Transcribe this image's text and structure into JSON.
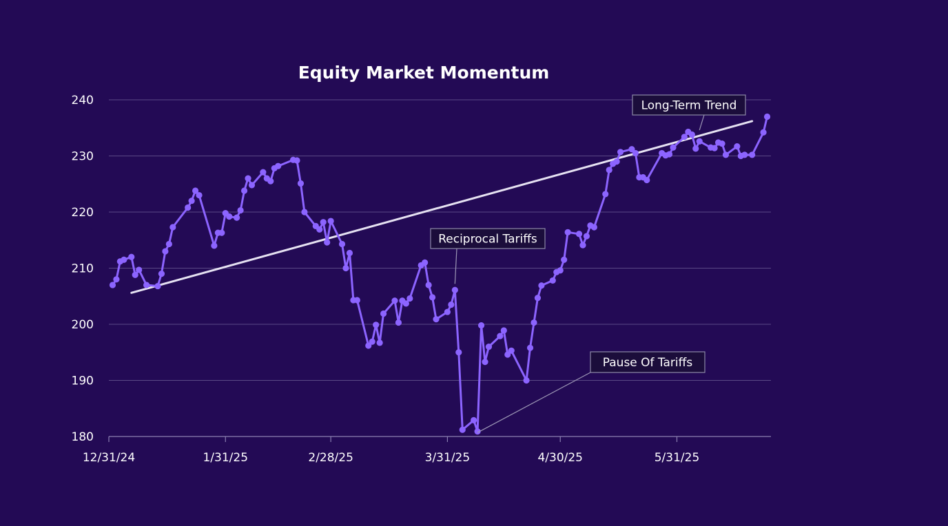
{
  "chart_data": {
    "type": "line",
    "title": "Equity Market Momentum",
    "xlabel": "",
    "ylabel": "",
    "ylim": [
      180,
      240
    ],
    "yticks": [
      180,
      190,
      200,
      210,
      220,
      230,
      240
    ],
    "xticks": [
      {
        "label": "12/31/24",
        "date": "2024-12-31"
      },
      {
        "label": "1/31/25",
        "date": "2025-01-31"
      },
      {
        "label": "2/28/25",
        "date": "2025-02-28"
      },
      {
        "label": "3/31/25",
        "date": "2025-03-31"
      },
      {
        "label": "4/30/25",
        "date": "2025-04-30"
      },
      {
        "label": "5/31/25",
        "date": "2025-05-31"
      }
    ],
    "xlim": [
      "2024-12-31",
      "2025-06-25"
    ],
    "grid": true,
    "colors": {
      "series": "#8c64ff",
      "trend": "#e6e2f2",
      "background": "#230a55"
    },
    "series": [
      {
        "markers": true,
        "points": [
          [
            "2025-01-01",
            207.0
          ],
          [
            "2025-01-02",
            208.0
          ],
          [
            "2025-01-03",
            211.2
          ],
          [
            "2025-01-04",
            211.5
          ],
          [
            "2025-01-06",
            212.0
          ],
          [
            "2025-01-07",
            208.8
          ],
          [
            "2025-01-08",
            209.7
          ],
          [
            "2025-01-10",
            207.0
          ],
          [
            "2025-01-13",
            206.8
          ],
          [
            "2025-01-14",
            209.0
          ],
          [
            "2025-01-15",
            213.0
          ],
          [
            "2025-01-16",
            214.3
          ],
          [
            "2025-01-17",
            217.3
          ],
          [
            "2025-01-21",
            220.8
          ],
          [
            "2025-01-22",
            222.0
          ],
          [
            "2025-01-23",
            223.8
          ],
          [
            "2025-01-24",
            223.0
          ],
          [
            "2025-01-28",
            214.0
          ],
          [
            "2025-01-29",
            216.3
          ],
          [
            "2025-01-30",
            216.3
          ],
          [
            "2025-01-31",
            219.8
          ],
          [
            "2025-02-01",
            219.2
          ],
          [
            "2025-02-03",
            219.0
          ],
          [
            "2025-02-04",
            220.3
          ],
          [
            "2025-02-05",
            223.8
          ],
          [
            "2025-02-06",
            226.0
          ],
          [
            "2025-02-07",
            224.8
          ],
          [
            "2025-02-10",
            227.1
          ],
          [
            "2025-02-11",
            226.0
          ],
          [
            "2025-02-12",
            225.5
          ],
          [
            "2025-02-13",
            227.8
          ],
          [
            "2025-02-14",
            228.2
          ],
          [
            "2025-02-18",
            229.3
          ],
          [
            "2025-02-19",
            229.2
          ],
          [
            "2025-02-20",
            225.1
          ],
          [
            "2025-02-21",
            220.0
          ],
          [
            "2025-02-24",
            217.5
          ],
          [
            "2025-02-25",
            216.9
          ],
          [
            "2025-02-26",
            218.2
          ],
          [
            "2025-02-27",
            214.6
          ],
          [
            "2025-02-28",
            218.4
          ],
          [
            "2025-03-03",
            214.3
          ],
          [
            "2025-03-04",
            210.0
          ],
          [
            "2025-03-05",
            212.7
          ],
          [
            "2025-03-06",
            204.3
          ],
          [
            "2025-03-07",
            204.3
          ],
          [
            "2025-03-10",
            196.2
          ],
          [
            "2025-03-11",
            196.9
          ],
          [
            "2025-03-12",
            199.9
          ],
          [
            "2025-03-13",
            196.7
          ],
          [
            "2025-03-14",
            201.9
          ],
          [
            "2025-03-17",
            204.2
          ],
          [
            "2025-03-18",
            200.3
          ],
          [
            "2025-03-19",
            204.2
          ],
          [
            "2025-03-20",
            203.7
          ],
          [
            "2025-03-21",
            204.6
          ],
          [
            "2025-03-24",
            210.5
          ],
          [
            "2025-03-25",
            211.0
          ],
          [
            "2025-03-26",
            207.0
          ],
          [
            "2025-03-27",
            204.8
          ],
          [
            "2025-03-28",
            200.9
          ],
          [
            "2025-03-31",
            202.2
          ],
          [
            "2025-04-01",
            203.5
          ],
          [
            "2025-04-02",
            206.1
          ],
          [
            "2025-04-03",
            195.0
          ],
          [
            "2025-04-04",
            181.2
          ],
          [
            "2025-04-07",
            182.9
          ],
          [
            "2025-04-08",
            180.9
          ],
          [
            "2025-04-09",
            199.8
          ],
          [
            "2025-04-10",
            193.3
          ],
          [
            "2025-04-11",
            196.0
          ],
          [
            "2025-04-14",
            197.9
          ],
          [
            "2025-04-15",
            198.9
          ],
          [
            "2025-04-16",
            194.6
          ],
          [
            "2025-04-17",
            195.3
          ],
          [
            "2025-04-21",
            190.0
          ],
          [
            "2025-04-22",
            195.8
          ],
          [
            "2025-04-23",
            200.3
          ],
          [
            "2025-04-24",
            204.7
          ],
          [
            "2025-04-25",
            206.9
          ],
          [
            "2025-04-28",
            207.8
          ],
          [
            "2025-04-29",
            209.3
          ],
          [
            "2025-04-30",
            209.6
          ],
          [
            "2025-05-01",
            211.5
          ],
          [
            "2025-05-02",
            216.4
          ],
          [
            "2025-05-05",
            216.1
          ],
          [
            "2025-05-06",
            214.1
          ],
          [
            "2025-05-07",
            215.7
          ],
          [
            "2025-05-08",
            217.6
          ],
          [
            "2025-05-09",
            217.3
          ],
          [
            "2025-05-12",
            223.2
          ],
          [
            "2025-05-13",
            227.5
          ],
          [
            "2025-05-14",
            228.6
          ],
          [
            "2025-05-15",
            229.0
          ],
          [
            "2025-05-16",
            230.7
          ],
          [
            "2025-05-19",
            231.2
          ],
          [
            "2025-05-20",
            230.5
          ],
          [
            "2025-05-21",
            226.2
          ],
          [
            "2025-05-22",
            226.2
          ],
          [
            "2025-05-23",
            225.7
          ],
          [
            "2025-05-27",
            230.5
          ],
          [
            "2025-05-28",
            230.1
          ],
          [
            "2025-05-29",
            230.3
          ],
          [
            "2025-05-30",
            231.5
          ],
          [
            "2025-06-02",
            233.4
          ],
          [
            "2025-06-03",
            234.3
          ],
          [
            "2025-06-04",
            233.8
          ],
          [
            "2025-06-05",
            231.3
          ],
          [
            "2025-06-06",
            232.6
          ],
          [
            "2025-06-09",
            231.5
          ],
          [
            "2025-06-10",
            231.4
          ],
          [
            "2025-06-11",
            232.4
          ],
          [
            "2025-06-12",
            232.2
          ],
          [
            "2025-06-13",
            230.2
          ],
          [
            "2025-06-16",
            231.7
          ],
          [
            "2025-06-17",
            230.0
          ],
          [
            "2025-06-18",
            230.2
          ],
          [
            "2025-06-20",
            230.2
          ],
          [
            "2025-06-23",
            234.2
          ],
          [
            "2025-06-24",
            237.0
          ]
        ]
      }
    ],
    "trend_line": {
      "start": [
        "2025-01-06",
        205.6
      ],
      "end": [
        "2025-06-20",
        236.2
      ]
    },
    "annotations": [
      {
        "text": "Long-Term Trend",
        "target": [
          "2025-06-06",
          234.6
        ]
      },
      {
        "text": "Reciprocal Tariffs",
        "target": [
          "2025-04-02",
          207.2
        ]
      },
      {
        "text": "Pause Of Tariffs",
        "target": [
          "2025-04-08",
          180.7
        ]
      }
    ]
  }
}
